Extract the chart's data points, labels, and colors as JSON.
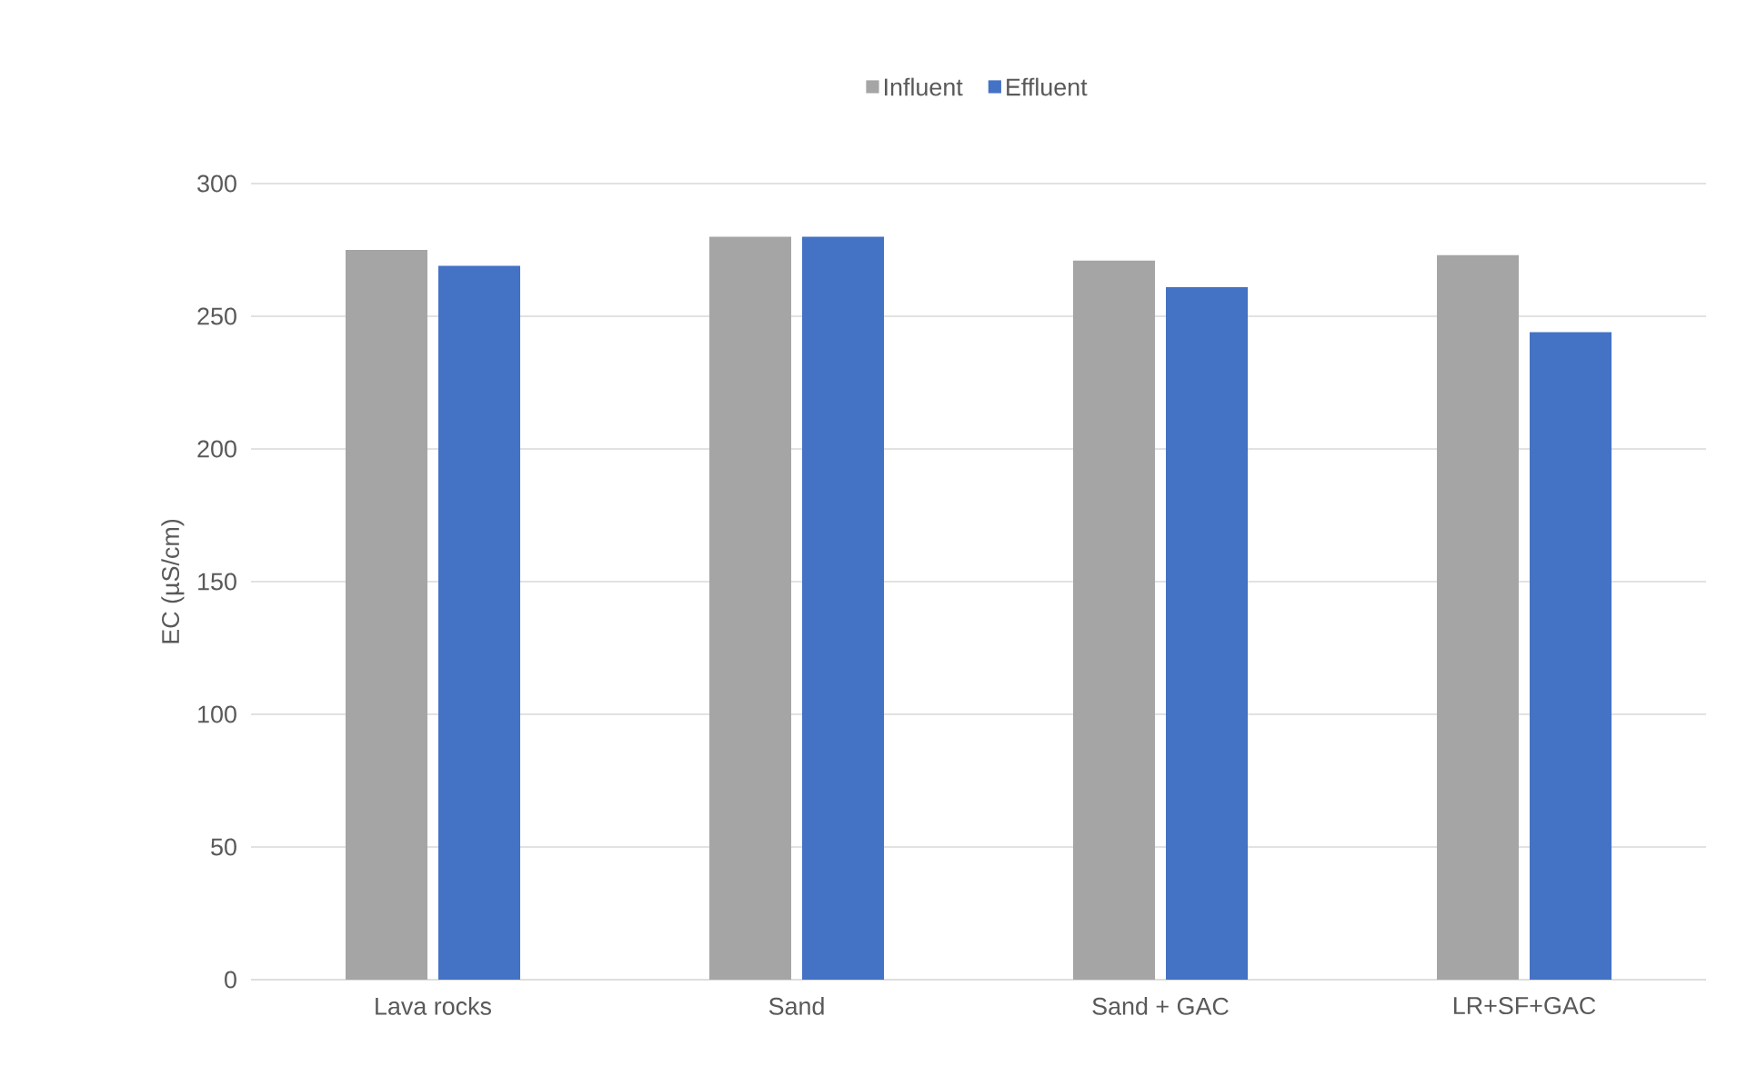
{
  "chart_data": {
    "type": "bar",
    "ylabel": "EC (µS/cm)",
    "categories": [
      "Lava rocks",
      "Sand",
      "Sand + GAC",
      "LR+SF+GAC"
    ],
    "series": [
      {
        "name": "Influent",
        "color": "#a5a5a5",
        "values": [
          275,
          280,
          271,
          273
        ]
      },
      {
        "name": "Effluent",
        "color": "#4472c4",
        "values": [
          269,
          280,
          261,
          244
        ]
      }
    ],
    "ylim": [
      0,
      300
    ],
    "yticks": [
      0,
      50,
      100,
      150,
      200,
      250,
      300
    ],
    "grid": "y",
    "legend": "top"
  }
}
